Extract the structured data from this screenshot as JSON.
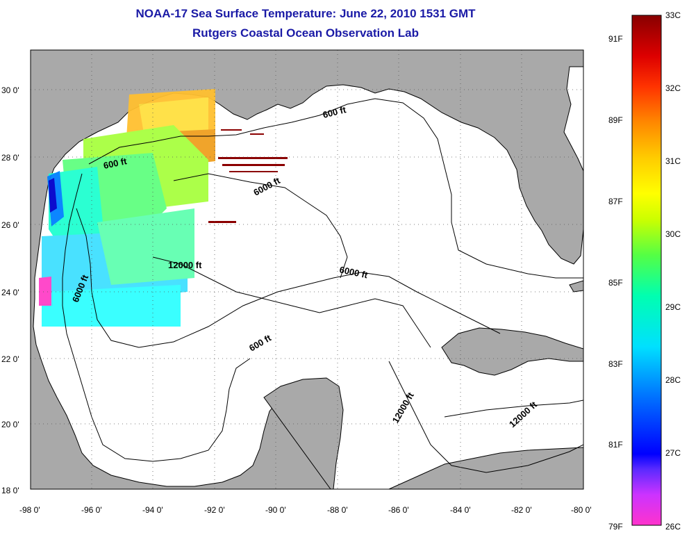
{
  "title": "NOAA-17 Sea Surface Temperature:  June 22, 2010 1531 GMT",
  "subtitle": "Rutgers Coastal Ocean Observation Lab",
  "map": {
    "lon_range": [
      -98,
      -80
    ],
    "lat_range": [
      18,
      31
    ],
    "lon_labels": [
      "-98 0'",
      "-96 0'",
      "-94 0'",
      "-92 0'",
      "-90 0'",
      "-88 0'",
      "-86 0'",
      "-84 0'",
      "-82 0'",
      "-80 0'"
    ],
    "lat_labels": [
      "18 0'",
      "20 0'",
      "22 0'",
      "24 0'",
      "26 0'",
      "28 0'",
      "30 0'"
    ],
    "grid": true,
    "land_color": "#a9a9a9",
    "water_color": "#ffffff",
    "contour_labels": [
      "600 ft",
      "600 ft",
      "600 ft",
      "6000 ft",
      "6000 ft",
      "6000 ft",
      "12000 ft",
      "12000 ft",
      "12000 ft"
    ]
  },
  "colorbar": {
    "celsius_labels": [
      "33C",
      "32C",
      "31C",
      "30C",
      "29C",
      "28C",
      "27C",
      "26C"
    ],
    "fahrenheit_labels": [
      "91F",
      "89F",
      "87F",
      "85F",
      "83F",
      "81F",
      "79F"
    ],
    "range_c": [
      26,
      33
    ],
    "colors": [
      "#ff33cc",
      "#cc33ff",
      "#6633ff",
      "#0000ff",
      "#0066ff",
      "#00ccff",
      "#00ffff",
      "#00ff99",
      "#66ff33",
      "#ccff00",
      "#ffff00",
      "#ffcc00",
      "#ff9900",
      "#ff6600",
      "#ff0000",
      "#cc0000",
      "#880000"
    ]
  }
}
